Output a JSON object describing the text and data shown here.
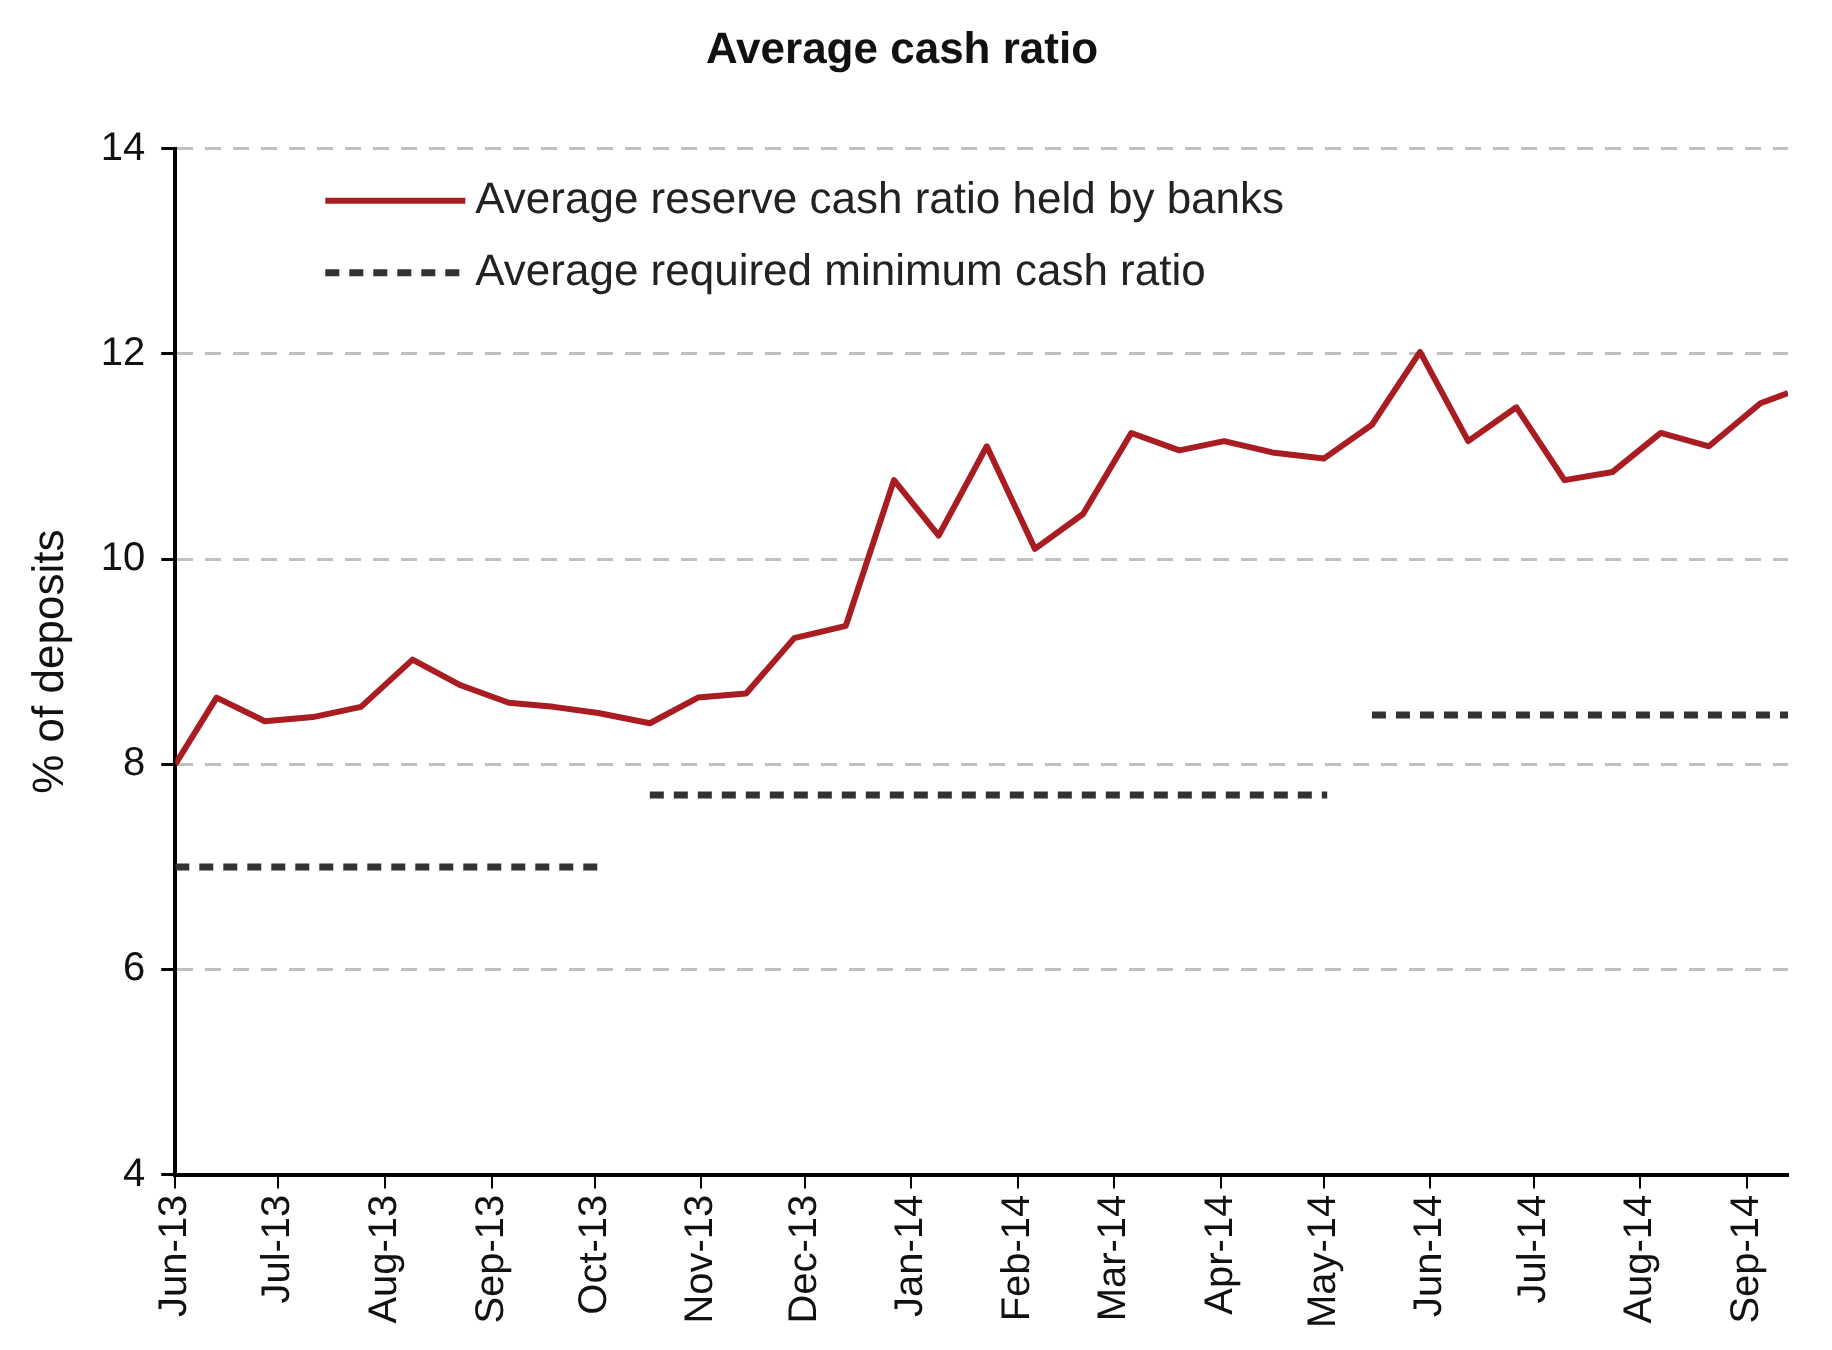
{
  "chart_data": {
    "type": "line",
    "title": "Average cash ratio",
    "ylabel": "% of deposits",
    "xlim": [
      "2013-06-01",
      "2014-09-13"
    ],
    "xticks": [
      {
        "value": "2013-06-01",
        "label": "Jun-13"
      },
      {
        "value": "2013-07-01",
        "label": "Jul-13"
      },
      {
        "value": "2013-08-01",
        "label": "Aug-13"
      },
      {
        "value": "2013-09-01",
        "label": "Sep-13"
      },
      {
        "value": "2013-10-01",
        "label": "Oct-13"
      },
      {
        "value": "2013-11-01",
        "label": "Nov-13"
      },
      {
        "value": "2013-12-01",
        "label": "Dec-13"
      },
      {
        "value": "2014-01-01",
        "label": "Jan-14"
      },
      {
        "value": "2014-02-01",
        "label": "Feb-14"
      },
      {
        "value": "2014-03-01",
        "label": "Mar-14"
      },
      {
        "value": "2014-04-01",
        "label": "Apr-14"
      },
      {
        "value": "2014-05-01",
        "label": "May-14"
      },
      {
        "value": "2014-06-01",
        "label": "Jun-14"
      },
      {
        "value": "2014-07-01",
        "label": "Jul-14"
      },
      {
        "value": "2014-08-01",
        "label": "Aug-14"
      },
      {
        "value": "2014-09-01",
        "label": "Sep-14"
      }
    ],
    "ylim": [
      4,
      14
    ],
    "yticks": [
      4,
      6,
      8,
      10,
      12,
      14
    ],
    "grid": "y",
    "legend": "top left",
    "marker": "none",
    "series": [
      {
        "name": "Average reserve cash ratio held by banks",
        "color": "#a81c22",
        "line_style": "solid",
        "x": [
          "2013-06-01",
          "2013-06-13",
          "2013-06-27",
          "2013-07-11",
          "2013-07-25",
          "2013-08-09",
          "2013-08-23",
          "2013-09-06",
          "2013-09-19",
          "2013-10-02",
          "2013-10-17",
          "2013-10-31",
          "2013-11-14",
          "2013-11-28",
          "2013-12-13",
          "2013-12-27",
          "2014-01-09",
          "2014-01-23",
          "2014-02-06",
          "2014-02-20",
          "2014-03-06",
          "2014-03-20",
          "2014-04-02",
          "2014-04-16",
          "2014-05-01",
          "2014-05-15",
          "2014-05-29",
          "2014-06-12",
          "2014-06-26",
          "2014-07-10",
          "2014-07-24",
          "2014-08-07",
          "2014-08-21",
          "2014-09-05",
          "2014-09-13"
        ],
        "values": [
          8.0,
          8.65,
          8.42,
          8.46,
          8.56,
          9.02,
          8.77,
          8.6,
          8.56,
          8.5,
          8.4,
          8.65,
          8.69,
          9.23,
          9.35,
          10.77,
          10.23,
          11.1,
          10.1,
          10.44,
          11.23,
          11.06,
          11.15,
          11.04,
          10.98,
          11.31,
          12.02,
          11.15,
          11.48,
          10.77,
          10.85,
          11.23,
          11.1,
          11.52,
          11.62
        ]
      },
      {
        "name": "Average required minimum cash ratio",
        "color": "#333333",
        "line_style": "dashed",
        "x": [
          "2013-06-01",
          "2013-10-03",
          "2013-10-10",
          "2013-10-17",
          "2014-05-02",
          "2014-05-08",
          "2014-05-15",
          "2014-09-13"
        ],
        "values": [
          7.0,
          7.0,
          null,
          7.7,
          7.7,
          null,
          8.48,
          8.48
        ]
      }
    ]
  }
}
